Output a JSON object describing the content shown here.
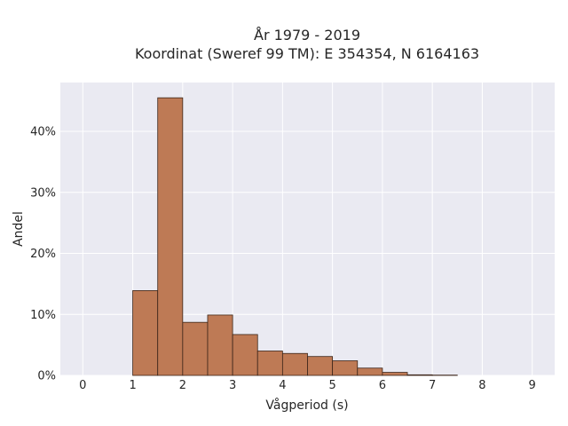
{
  "chart_data": {
    "type": "bar",
    "title": "År 1979 - 2019",
    "subtitle": "Koordinat (Sweref 99 TM): E 354354, N 6164163",
    "xlabel": "Vågperiod (s)",
    "ylabel": "Andel",
    "xlim": [
      -0.45,
      9.45
    ],
    "ylim": [
      0,
      0.48
    ],
    "x_ticks": [
      0,
      1,
      2,
      3,
      4,
      5,
      6,
      7,
      8,
      9
    ],
    "x_tick_labels": [
      "0",
      "1",
      "2",
      "3",
      "4",
      "5",
      "6",
      "7",
      "8",
      "9"
    ],
    "y_ticks": [
      0,
      0.1,
      0.2,
      0.3,
      0.4
    ],
    "y_tick_labels": [
      "0%",
      "10%",
      "20%",
      "30%",
      "40%"
    ],
    "grid": true,
    "bin_width": 0.5,
    "bins": [
      {
        "x0": 1.0,
        "x1": 1.5,
        "value": 0.139
      },
      {
        "x0": 1.5,
        "x1": 2.0,
        "value": 0.455
      },
      {
        "x0": 2.0,
        "x1": 2.5,
        "value": 0.087
      },
      {
        "x0": 2.5,
        "x1": 3.0,
        "value": 0.099
      },
      {
        "x0": 3.0,
        "x1": 3.5,
        "value": 0.067
      },
      {
        "x0": 3.5,
        "x1": 4.0,
        "value": 0.04
      },
      {
        "x0": 4.0,
        "x1": 4.5,
        "value": 0.036
      },
      {
        "x0": 4.5,
        "x1": 5.0,
        "value": 0.031
      },
      {
        "x0": 5.0,
        "x1": 5.5,
        "value": 0.024
      },
      {
        "x0": 5.5,
        "x1": 6.0,
        "value": 0.012
      },
      {
        "x0": 6.0,
        "x1": 6.5,
        "value": 0.005
      },
      {
        "x0": 6.5,
        "x1": 7.0,
        "value": 0.001
      },
      {
        "x0": 7.0,
        "x1": 7.5,
        "value": 0.0005
      }
    ],
    "colors": {
      "bar_fill": "#be7a55",
      "bar_edge": "#3b2418",
      "plot_background": "#eaeaf2",
      "grid": "#ffffff",
      "text": "#262626"
    }
  }
}
